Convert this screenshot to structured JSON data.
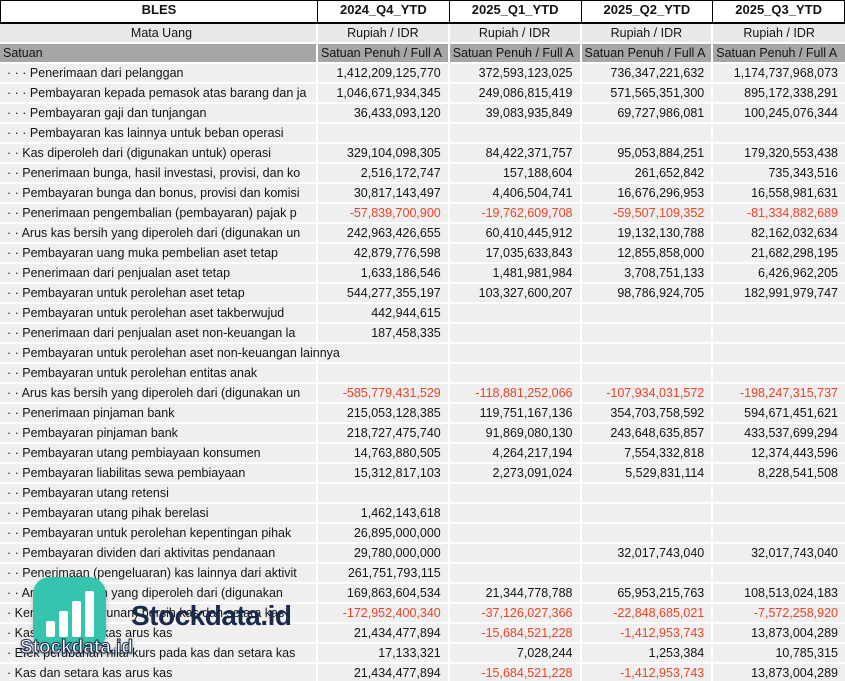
{
  "header": {
    "ticker": "BLES",
    "columns": [
      "2024_Q4_YTD",
      "2025_Q1_YTD",
      "2025_Q2_YTD",
      "2025_Q3_YTD"
    ]
  },
  "currency_row": {
    "label": "Mata Uang",
    "values": [
      "Rupiah / IDR",
      "Rupiah / IDR",
      "Rupiah / IDR",
      "Rupiah / IDR"
    ]
  },
  "unit_row": {
    "label": "Satuan",
    "values": [
      "Satuan Penuh / Full A",
      "Satuan Penuh / Full A",
      "Satuan Penuh / Full A",
      "Satuan Penuh / Full A"
    ]
  },
  "rows": [
    {
      "label": "· · · Penerimaan dari pelanggan",
      "values": [
        "1,412,209,125,770",
        "372,593,123,025",
        "736,347,221,632",
        "1,174,737,968,073"
      ]
    },
    {
      "label": "· · · Pembayaran kepada pemasok atas barang dan ja",
      "values": [
        "1,046,671,934,345",
        "249,086,815,419",
        "571,565,351,300",
        "895,172,338,291"
      ]
    },
    {
      "label": "· · · Pembayaran gaji dan tunjangan",
      "values": [
        "36,433,093,120",
        "39,083,935,849",
        "69,727,986,081",
        "100,245,076,344"
      ]
    },
    {
      "label": "· · · Pembayaran kas lainnya untuk beban operasi",
      "values": [
        "",
        "",
        "",
        ""
      ]
    },
    {
      "label": "· · Kas diperoleh dari (digunakan untuk) operasi",
      "values": [
        "329,104,098,305",
        "84,422,371,757",
        "95,053,884,251",
        "179,320,553,438"
      ]
    },
    {
      "label": "· · Penerimaan bunga, hasil investasi, provisi, dan ko",
      "values": [
        "2,516,172,747",
        "157,188,604",
        "261,652,842",
        "735,343,516"
      ]
    },
    {
      "label": "· · Pembayaran bunga dan bonus, provisi dan komisi",
      "values": [
        "30,817,143,497",
        "4,406,504,741",
        "16,676,296,953",
        "16,558,981,631"
      ]
    },
    {
      "label": "· · Penerimaan pengembalian (pembayaran) pajak p",
      "values": [
        "-57,839,700,900",
        "-19,762,609,708",
        "-59,507,109,352",
        "-81,334,882,689"
      ]
    },
    {
      "label": "· · Arus kas bersih yang diperoleh dari (digunakan un",
      "values": [
        "242,963,426,655",
        "60,410,445,912",
        "19,132,130,788",
        "82,162,032,634"
      ]
    },
    {
      "label": "· · Pembayaran uang muka pembelian aset tetap",
      "values": [
        "42,879,776,598",
        "17,035,633,843",
        "12,855,858,000",
        "21,682,298,195"
      ]
    },
    {
      "label": "· · Penerimaan dari penjualan aset tetap",
      "values": [
        "1,633,186,546",
        "1,481,981,984",
        "3,708,751,133",
        "6,426,962,205"
      ]
    },
    {
      "label": "· · Pembayaran untuk perolehan aset tetap",
      "values": [
        "544,277,355,197",
        "103,327,600,207",
        "98,786,924,705",
        "182,991,979,747"
      ]
    },
    {
      "label": "· · Pembayaran untuk perolehan aset takberwujud",
      "values": [
        "442,944,615",
        "",
        "",
        ""
      ]
    },
    {
      "label": "· · Penerimaan dari penjualan aset non-keuangan la",
      "values": [
        "187,458,335",
        "",
        "",
        ""
      ]
    },
    {
      "label": "· · Pembayaran untuk perolehan aset non-keuangan lainnya",
      "values": [
        "",
        "",
        "",
        ""
      ]
    },
    {
      "label": "· · Pembayaran untuk perolehan entitas anak",
      "values": [
        "",
        "",
        "",
        ""
      ]
    },
    {
      "label": "· · Arus kas bersih yang diperoleh dari (digunakan un",
      "values": [
        "-585,779,431,529",
        "-118,881,252,066",
        "-107,934,031,572",
        "-198,247,315,737"
      ]
    },
    {
      "label": "· · Penerimaan pinjaman bank",
      "values": [
        "215,053,128,385",
        "119,751,167,136",
        "354,703,758,592",
        "594,671,451,621"
      ]
    },
    {
      "label": "· · Pembayaran pinjaman bank",
      "values": [
        "218,727,475,740",
        "91,869,080,130",
        "243,648,635,857",
        "433,537,699,294"
      ]
    },
    {
      "label": "· · Pembayaran utang pembiayaan konsumen",
      "values": [
        "14,763,880,505",
        "4,264,217,194",
        "7,554,332,818",
        "12,374,443,596"
      ]
    },
    {
      "label": "· · Pembayaran liabilitas sewa pembiayaan",
      "values": [
        "15,312,817,103",
        "2,273,091,024",
        "5,529,831,114",
        "8,228,541,508"
      ]
    },
    {
      "label": "· · Pembayaran utang retensi",
      "values": [
        "",
        "",
        "",
        ""
      ]
    },
    {
      "label": "· · Pembayaran utang pihak berelasi",
      "values": [
        "1,462,143,618",
        "",
        "",
        ""
      ]
    },
    {
      "label": "· · Pembayaran untuk perolehan kepentingan pihak",
      "values": [
        "26,895,000,000",
        "",
        "",
        ""
      ]
    },
    {
      "label": "· · Pembayaran dividen dari aktivitas pendanaan",
      "values": [
        "29,780,000,000",
        "",
        "32,017,743,040",
        "32,017,743,040"
      ]
    },
    {
      "label": "· · Penerimaan (pengeluaran) kas lainnya dari aktivit",
      "values": [
        "261,751,793,115",
        "",
        "",
        ""
      ]
    },
    {
      "label": "· · Arus kas bersih yang diperoleh dari (digunakan",
      "values": [
        "169,863,604,534",
        "21,344,778,788",
        "65,953,215,763",
        "108,513,024,183"
      ]
    },
    {
      "label": "· Kenaikan (penurunan) bersih kas dan setara kas",
      "values": [
        "-172,952,400,340",
        "-37,126,027,366",
        "-22,848,685,021",
        "-7,572,258,920"
      ]
    },
    {
      "label": "· Kas dan setara kas arus kas",
      "values": [
        "21,434,477,894",
        "-15,684,521,228",
        "-1,412,953,743",
        "13,873,004,289"
      ]
    },
    {
      "label": "· Efek perubahan nilai kurs pada kas dan setara kas",
      "values": [
        "17,133,321",
        "7,028,244",
        "1,253,384",
        "10,785,315"
      ]
    },
    {
      "label": "· Kas dan setara kas arus kas",
      "values": [
        "21,434,477,894",
        "-15,684,521,228",
        "-1,412,953,743",
        "13,873,004,289"
      ]
    }
  ],
  "watermark": {
    "brand": "Stockdata.id",
    "brand_small": "Stockdata.id",
    "icon": "bar-chart-logo-icon"
  },
  "colors": {
    "negative": "#EE4224",
    "row_bg": "#EFEFEF",
    "currency_row_bg": "#E9E9E9",
    "unit_row_bg": "#A6A6A6",
    "gridline": "#FFFFFF",
    "header_border": "#000000",
    "logo_teal": "#35C4AE",
    "logo_navy": "#1B2A4A"
  }
}
